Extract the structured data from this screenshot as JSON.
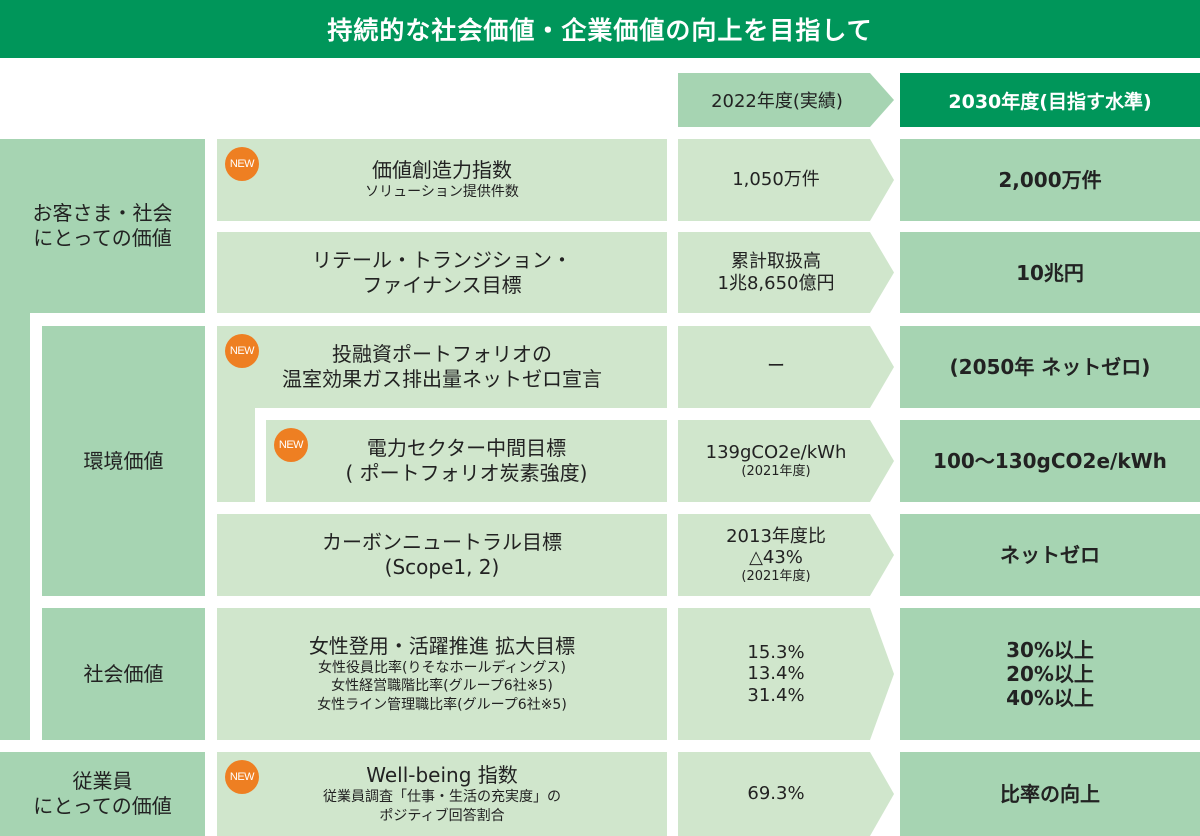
{
  "title": "持続的な社会価値・企業価値の向上を目指して",
  "header": {
    "current": "2022年度(実績)",
    "target": "2030年度(目指す水準)"
  },
  "new_badge": "NEW",
  "categories": {
    "customer": "お客さま・社会\nにとっての価値",
    "environment": "環境価値",
    "social": "社会価値",
    "employee": "従業員\nにとっての価値"
  },
  "rows": [
    {
      "title": "価値創造力指数",
      "sub": "ソリューション提供件数",
      "current": "1,050万件",
      "target": "2,000万件",
      "new": true
    },
    {
      "title": "リテール・トランジション・\nファイナンス目標",
      "current": "累計取扱高\n1兆8,650億円",
      "target": "10兆円"
    },
    {
      "title": "投融資ポートフォリオの\n温室効果ガス排出量ネットゼロ宣言",
      "current": "ー",
      "target": "(2050年 ネットゼロ)",
      "new": true
    },
    {
      "title": "電力セクター中間目標\n( ポートフォリオ炭素強度)",
      "current": "139gCO2e/kWh",
      "current_note": "(2021年度)",
      "target": "100〜130gCO2e/kWh",
      "new": true
    },
    {
      "title": "カーボンニュートラル目標\n(Scope1, 2)",
      "current": "2013年度比\n△43%",
      "current_note": "(2021年度)",
      "target": "ネットゼロ"
    },
    {
      "title": "女性登用・活躍推進 拡大目標",
      "sub": "女性役員比率(りそなホールディングス)\n女性経営職階比率(グループ6社※5)\n女性ライン管理職比率(グループ6社※5)",
      "current": "15.3%\n13.4%\n31.4%",
      "target": "30%以上\n20%以上\n40%以上"
    },
    {
      "title": "Well-being 指数",
      "sub": "従業員調査「仕事・生活の充実度」の\nポジティブ回答割合",
      "current": "69.3%",
      "target": "比率の向上",
      "new": true
    }
  ]
}
